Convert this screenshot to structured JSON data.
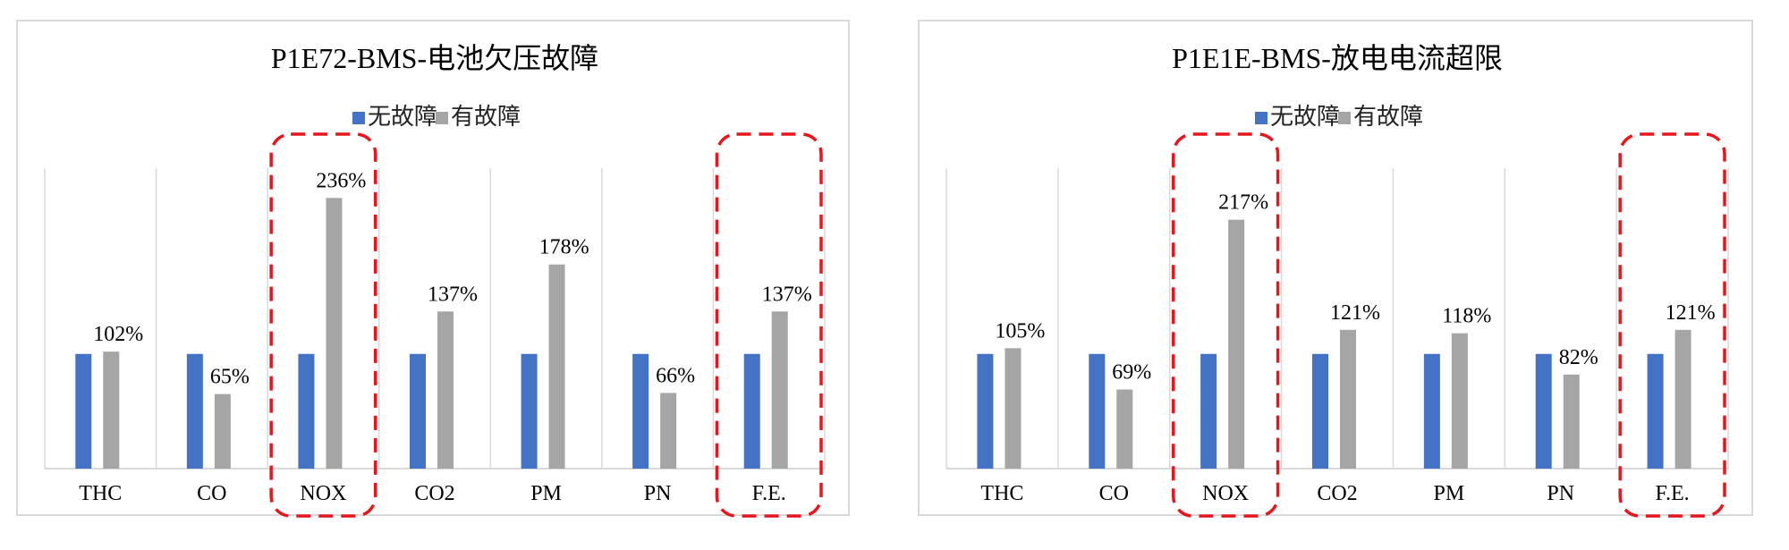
{
  "chart_data": [
    {
      "type": "bar",
      "title": "P1E72-BMS-电池欠压故障",
      "categories": [
        "THC",
        "CO",
        "NOX",
        "CO2",
        "PM",
        "PN",
        "F.E."
      ],
      "series": [
        {
          "name": "无故障",
          "values": [
            100,
            100,
            100,
            100,
            100,
            100,
            100
          ]
        },
        {
          "name": "有故障",
          "values": [
            102,
            65,
            236,
            137,
            178,
            66,
            137
          ]
        }
      ],
      "data_labels": [
        "102%",
        "65%",
        "236%",
        "137%",
        "178%",
        "66%",
        "137%"
      ],
      "highlighted_categories": [
        "NOX",
        "F.E."
      ],
      "ylim": [
        0,
        250
      ],
      "legend": "top-center",
      "grid": "vertical category separators"
    },
    {
      "type": "bar",
      "title": "P1E1E-BMS-放电电流超限",
      "categories": [
        "THC",
        "CO",
        "NOX",
        "CO2",
        "PM",
        "PN",
        "F.E."
      ],
      "series": [
        {
          "name": "无故障",
          "values": [
            100,
            100,
            100,
            100,
            100,
            100,
            100
          ]
        },
        {
          "name": "有故障",
          "values": [
            105,
            69,
            217,
            121,
            118,
            82,
            121
          ]
        }
      ],
      "data_labels": [
        "105%",
        "69%",
        "217%",
        "121%",
        "118%",
        "82%",
        "121%"
      ],
      "highlighted_categories": [
        "NOX",
        "F.E."
      ],
      "ylim": [
        0,
        250
      ],
      "legend": "top-center",
      "grid": "vertical category separators"
    }
  ],
  "colors": {
    "no_fault": "#4472c4",
    "fault": "#a5a5a5",
    "highlight_box": "#e8161c",
    "gridline": "#d9d9d9"
  }
}
